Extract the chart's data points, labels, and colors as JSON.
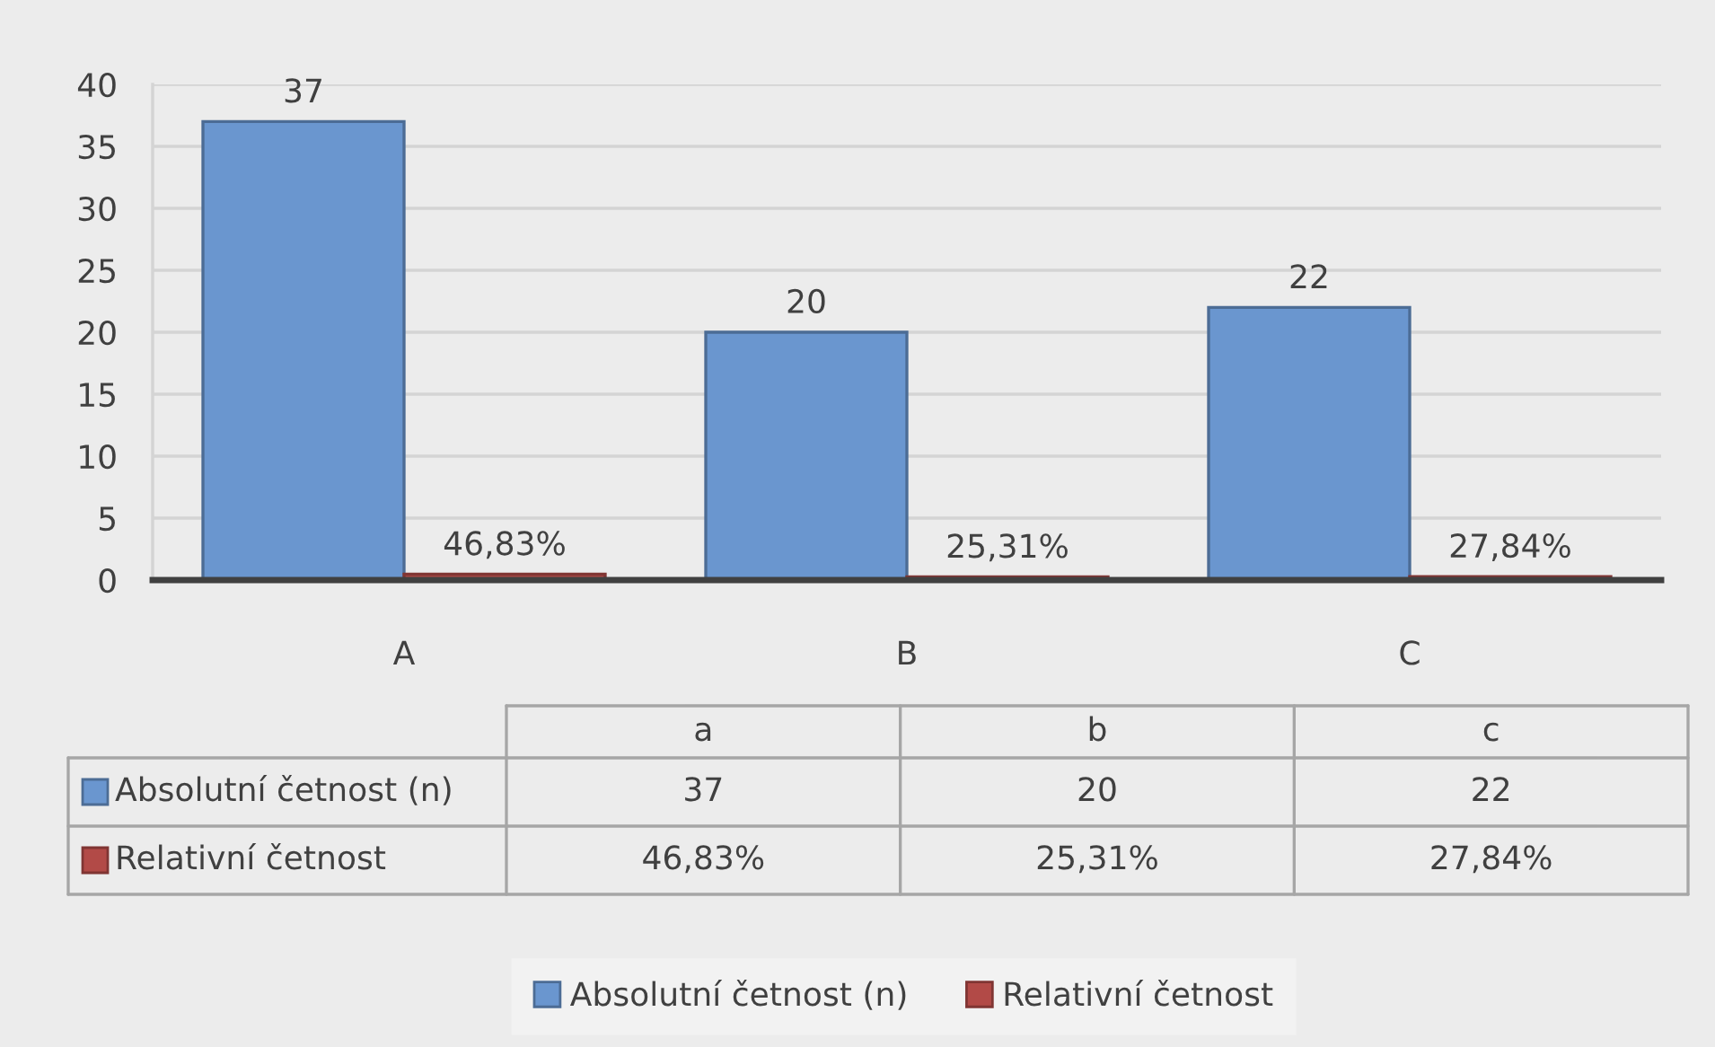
{
  "chart_data": {
    "type": "bar",
    "categories": [
      "A",
      "B",
      "C"
    ],
    "series": [
      {
        "name": "Absolutní četnost (n)",
        "color": "#6a96cf",
        "values": [
          37,
          20,
          22
        ],
        "value_labels": [
          "37",
          "20",
          "22"
        ]
      },
      {
        "name": "Relativní četnost",
        "color": "#b24a47",
        "values": [
          0.4683,
          0.2531,
          0.2784
        ],
        "value_labels": [
          "46,83%",
          "25,31%",
          "27,84%"
        ]
      }
    ],
    "ylim": [
      0,
      40
    ],
    "yticks": [
      0,
      5,
      10,
      15,
      20,
      25,
      30,
      35,
      40
    ],
    "grid": "y",
    "legend": "bottom",
    "annotations": [
      "a",
      "b",
      "c"
    ]
  }
}
